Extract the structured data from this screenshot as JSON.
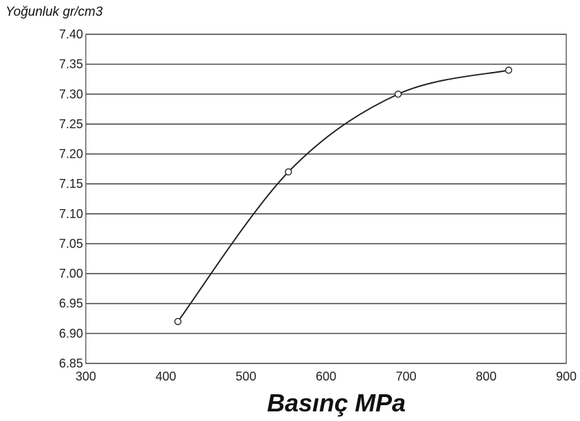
{
  "chart_data": {
    "type": "line",
    "xlabel": "Basınç MPa",
    "ylabel": "Yoğunluk gr/cm3",
    "xlim": [
      300,
      900
    ],
    "ylim": [
      6.85,
      7.4
    ],
    "x_ticks": [
      "300",
      "400",
      "500",
      "600",
      "700",
      "800",
      "900"
    ],
    "y_ticks": [
      "6.85",
      "6.90",
      "6.95",
      "7.00",
      "7.05",
      "7.10",
      "7.15",
      "7.20",
      "7.25",
      "7.30",
      "7.35",
      "7.40"
    ],
    "grid": "horizontal",
    "series": [
      {
        "points": [
          {
            "x": 415,
            "y": 6.92
          },
          {
            "x": 553,
            "y": 7.17
          },
          {
            "x": 690,
            "y": 7.3
          },
          {
            "x": 828,
            "y": 7.34
          }
        ]
      }
    ]
  }
}
